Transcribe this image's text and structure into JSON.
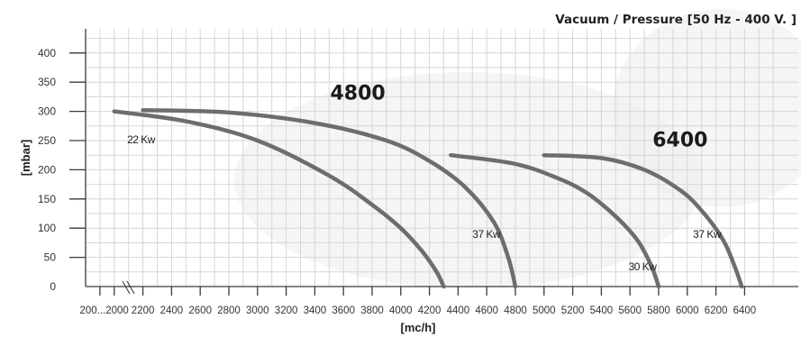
{
  "chart_data": {
    "type": "line",
    "title": "Vacuum / Pressure [50 Hz - 400 V. ]",
    "xlabel": "[mc/h]",
    "ylabel": "[mbar]",
    "x_ticks": [
      "200...2000",
      "2200",
      "2400",
      "2600",
      "2800",
      "3000",
      "3200",
      "3400",
      "3600",
      "3800",
      "4000",
      "4200",
      "4400",
      "4600",
      "4800",
      "5000",
      "5200",
      "5400",
      "5600",
      "5800",
      "6000",
      "6200",
      "6400"
    ],
    "y_ticks": [
      "0",
      "50",
      "100",
      "150",
      "200",
      "250",
      "300",
      "350",
      "400"
    ],
    "xlim": [
      1800,
      6600
    ],
    "ylim": [
      0,
      400
    ],
    "axis_break": true,
    "grid": true,
    "series": [
      {
        "name": "22 Kw",
        "group": "4800",
        "x": [
          2000,
          2500,
          3000,
          3500,
          3800,
          4000,
          4150,
          4250,
          4300
        ],
        "y": [
          300,
          283,
          250,
          190,
          140,
          100,
          60,
          25,
          0
        ]
      },
      {
        "name": "37 Kw",
        "group": "4800",
        "x": [
          2200,
          2800,
          3400,
          3900,
          4200,
          4450,
          4650,
          4750,
          4800
        ],
        "y": [
          302,
          298,
          280,
          250,
          215,
          170,
          110,
          50,
          0
        ]
      },
      {
        "name": "30 Kw",
        "group": "6400",
        "x": [
          4350,
          4800,
          5100,
          5300,
          5500,
          5650,
          5750,
          5800
        ],
        "y": [
          225,
          210,
          185,
          160,
          120,
          80,
          35,
          0
        ]
      },
      {
        "name": "37 Kw",
        "group": "6400",
        "x": [
          5000,
          5400,
          5700,
          5950,
          6100,
          6250,
          6330,
          6380
        ],
        "y": [
          225,
          220,
          200,
          165,
          130,
          80,
          35,
          0
        ]
      }
    ],
    "annotations": [
      {
        "text": "4800",
        "x": 3700,
        "y": 320
      },
      {
        "text": "6400",
        "x": 5950,
        "y": 240
      },
      {
        "text": "22 Kw",
        "x": 2090,
        "y": 245
      },
      {
        "text": "37 Kw",
        "x": 4500,
        "y": 83
      },
      {
        "text": "30 Kw",
        "x": 5590,
        "y": 28
      },
      {
        "text": "37 Kw",
        "x": 6040,
        "y": 83
      }
    ]
  }
}
